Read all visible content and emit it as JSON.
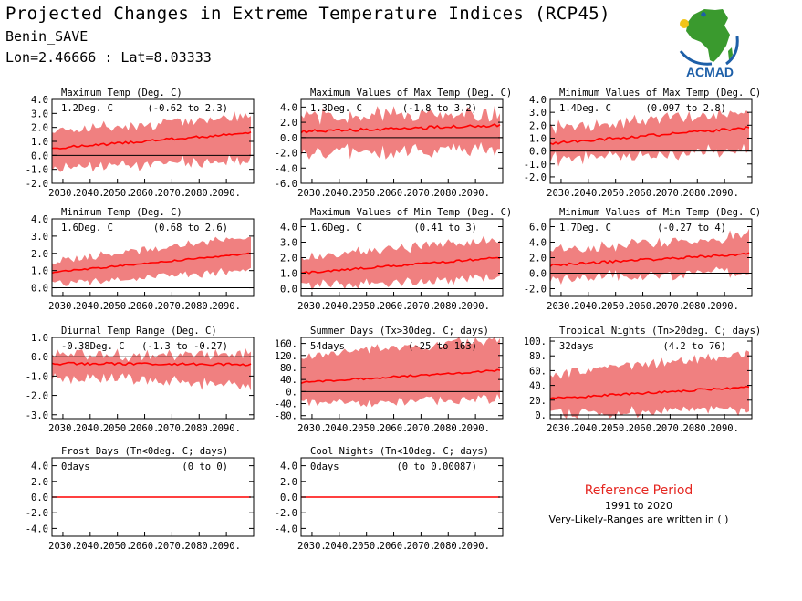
{
  "header": {
    "title": "Projected Changes in Extreme Temperature Indices (RCP45)",
    "station": "Benin_SAVE",
    "coords": "Lon=2.46666 : Lat=8.03333"
  },
  "logo": {
    "text": "ACMAD",
    "icon": "africa-map-logo-icon",
    "colors": {
      "green": "#3a9a2e",
      "blue": "#1d5fa8",
      "yellow": "#f2c418"
    }
  },
  "reference": {
    "title": "Reference Period",
    "years": "1991 to 2020",
    "note": "Very-Likely-Ranges are written in ( )"
  },
  "colors": {
    "band": "#f08080",
    "line": "#ff0000",
    "zero": "#000000",
    "accent": "#e52620"
  },
  "chart_data": [
    {
      "type": "area",
      "title": "Maximum Temp (Deg. C)",
      "change": "1.2Deg. C",
      "range": "(-0.62 to 2.3)",
      "x_ticks": [
        "2030.",
        "2040.",
        "2050.",
        "2060.",
        "2070.",
        "2080.",
        "2090."
      ],
      "xlim": [
        2026,
        2100
      ],
      "yticks": [
        "-2.0",
        "-1.0",
        "0.0",
        "1.0",
        "2.0",
        "3.0",
        "4.0"
      ],
      "ylim": [
        -2.0,
        4.0
      ],
      "median": {
        "start": 0.5,
        "end": 1.6
      },
      "lower": {
        "start": -1.0,
        "end": -0.3
      },
      "upper": {
        "start": 1.8,
        "end": 2.8
      },
      "jitter": 0.7
    },
    {
      "type": "area",
      "title": "Maximum Values of Max Temp (Deg. C)",
      "change": "1.3Deg. C",
      "range": "(-1.8 to 3.2)",
      "x_ticks": [
        "2030.",
        "2040.",
        "2050.",
        "2060.",
        "2070.",
        "2080.",
        "2090."
      ],
      "xlim": [
        2026,
        2100
      ],
      "yticks": [
        "-6.0",
        "-4.0",
        "-2.0",
        "0.0",
        "2.0",
        "4.0"
      ],
      "ylim": [
        -6.0,
        5.0
      ],
      "median": {
        "start": 0.8,
        "end": 1.6
      },
      "lower": {
        "start": -2.0,
        "end": -1.8
      },
      "upper": {
        "start": 2.8,
        "end": 3.2
      },
      "jitter": 1.6
    },
    {
      "type": "area",
      "title": "Minimum Values of Max Temp (Deg. C)",
      "change": "1.4Deg. C",
      "range": "(0.097 to 2.8)",
      "x_ticks": [
        "2030.",
        "2040.",
        "2050.",
        "2060.",
        "2070.",
        "2080.",
        "2090."
      ],
      "xlim": [
        2026,
        2100
      ],
      "yticks": [
        "-2.0",
        "-1.0",
        "0.0",
        "1.0",
        "2.0",
        "3.0",
        "4.0"
      ],
      "ylim": [
        -2.5,
        4.0
      ],
      "median": {
        "start": 0.6,
        "end": 1.8
      },
      "lower": {
        "start": -0.6,
        "end": 0.1
      },
      "upper": {
        "start": 1.8,
        "end": 3.0
      },
      "jitter": 0.8
    },
    {
      "type": "area",
      "title": "Minimum Temp (Deg. C)",
      "change": "1.6Deg. C",
      "range": "(0.68 to 2.6)",
      "x_ticks": [
        "2030.",
        "2040.",
        "2050.",
        "2060.",
        "2070.",
        "2080.",
        "2090."
      ],
      "xlim": [
        2026,
        2100
      ],
      "yticks": [
        "0.0",
        "1.0",
        "2.0",
        "3.0",
        "4.0"
      ],
      "ylim": [
        -0.5,
        4.0
      ],
      "median": {
        "start": 0.9,
        "end": 2.0
      },
      "lower": {
        "start": 0.2,
        "end": 1.0
      },
      "upper": {
        "start": 1.5,
        "end": 3.0
      },
      "jitter": 0.35
    },
    {
      "type": "area",
      "title": "Maximum Values of Min Temp (Deg. C)",
      "change": "1.6Deg. C",
      "range": "(0.41 to 3)",
      "x_ticks": [
        "2030.",
        "2040.",
        "2050.",
        "2060.",
        "2070.",
        "2080.",
        "2090."
      ],
      "xlim": [
        2026,
        2100
      ],
      "yticks": [
        "0.0",
        "1.0",
        "2.0",
        "3.0",
        "4.0"
      ],
      "ylim": [
        -0.5,
        4.5
      ],
      "median": {
        "start": 1.0,
        "end": 2.0
      },
      "lower": {
        "start": 0.2,
        "end": 0.7
      },
      "upper": {
        "start": 2.0,
        "end": 3.2
      },
      "jitter": 0.5
    },
    {
      "type": "area",
      "title": "Minimum Values of Min Temp (Deg. C)",
      "change": "1.7Deg. C",
      "range": "(-0.27 to 4)",
      "x_ticks": [
        "2030.",
        "2040.",
        "2050.",
        "2060.",
        "2070.",
        "2080.",
        "2090."
      ],
      "xlim": [
        2026,
        2100
      ],
      "yticks": [
        "-2.0",
        "0.0",
        "2.0",
        "4.0",
        "6.0"
      ],
      "ylim": [
        -3.0,
        7.0
      ],
      "median": {
        "start": 1.0,
        "end": 2.5
      },
      "lower": {
        "start": -0.8,
        "end": 0.3
      },
      "upper": {
        "start": 3.0,
        "end": 4.8
      },
      "jitter": 1.2
    },
    {
      "type": "area",
      "title": "Diurnal Temp Range (Deg. C)",
      "change": "-0.38Deg. C",
      "range": "(-1.3 to -0.27)",
      "x_ticks": [
        "2030.",
        "2040.",
        "2050.",
        "2060.",
        "2070.",
        "2080.",
        "2090."
      ],
      "xlim": [
        2026,
        2100
      ],
      "yticks": [
        "-3.0",
        "-2.0",
        "-1.0",
        "0.0",
        "1.0"
      ],
      "ylim": [
        -3.2,
        1.0
      ],
      "median": {
        "start": -0.35,
        "end": -0.4
      },
      "lower": {
        "start": -1.0,
        "end": -1.5
      },
      "upper": {
        "start": 0.0,
        "end": 0.2
      },
      "jitter": 0.5
    },
    {
      "type": "area",
      "title": "Summer Days (Tx>30deg. C; days)",
      "change": "54days",
      "range": "(-25 to 163)",
      "x_ticks": [
        "2030.",
        "2040.",
        "2050.",
        "2060.",
        "2070.",
        "2080.",
        "2090."
      ],
      "xlim": [
        2026,
        2100
      ],
      "yticks": [
        "-80.",
        "-40.",
        "0.",
        "40.",
        "80.",
        "120.",
        "160."
      ],
      "ylim": [
        -90,
        180
      ],
      "median": {
        "start": 30,
        "end": 70
      },
      "lower": {
        "start": -40,
        "end": -25
      },
      "upper": {
        "start": 120,
        "end": 175
      },
      "jitter": 25
    },
    {
      "type": "area",
      "title": "Tropical Nights (Tn>20deg. C; days)",
      "change": "32days",
      "range": "(4.2 to 76)",
      "x_ticks": [
        "2030.",
        "2040.",
        "2050.",
        "2060.",
        "2070.",
        "2080.",
        "2090."
      ],
      "xlim": [
        2026,
        2100
      ],
      "yticks": [
        "0.",
        "20.",
        "40.",
        "60.",
        "80.",
        "100."
      ],
      "ylim": [
        -5,
        105
      ],
      "median": {
        "start": 22,
        "end": 38
      },
      "lower": {
        "start": 2,
        "end": 8
      },
      "upper": {
        "start": 55,
        "end": 85
      },
      "jitter": 12
    },
    {
      "type": "area",
      "title": "Frost Days (Tn<0deg. C; days)",
      "change": "0days",
      "range": "(0 to 0)",
      "x_ticks": [
        "2030.",
        "2040.",
        "2050.",
        "2060.",
        "2070.",
        "2080.",
        "2090."
      ],
      "xlim": [
        2026,
        2100
      ],
      "yticks": [
        "-4.0",
        "-2.0",
        "0.0",
        "2.0",
        "4.0"
      ],
      "ylim": [
        -5.0,
        5.0
      ],
      "median": {
        "start": 0,
        "end": 0
      },
      "lower": {
        "start": 0,
        "end": 0
      },
      "upper": {
        "start": 0,
        "end": 0
      },
      "jitter": 0
    },
    {
      "type": "area",
      "title": "Cool Nights (Tn<10deg. C; days)",
      "change": "0days",
      "range": "(0 to 0.00087)",
      "x_ticks": [
        "2030.",
        "2040.",
        "2050.",
        "2060.",
        "2070.",
        "2080.",
        "2090."
      ],
      "xlim": [
        2026,
        2100
      ],
      "yticks": [
        "-4.0",
        "-2.0",
        "0.0",
        "2.0",
        "4.0"
      ],
      "ylim": [
        -5.0,
        5.0
      ],
      "median": {
        "start": 0,
        "end": 0
      },
      "lower": {
        "start": 0,
        "end": 0
      },
      "upper": {
        "start": 0,
        "end": 0
      },
      "jitter": 0
    }
  ]
}
